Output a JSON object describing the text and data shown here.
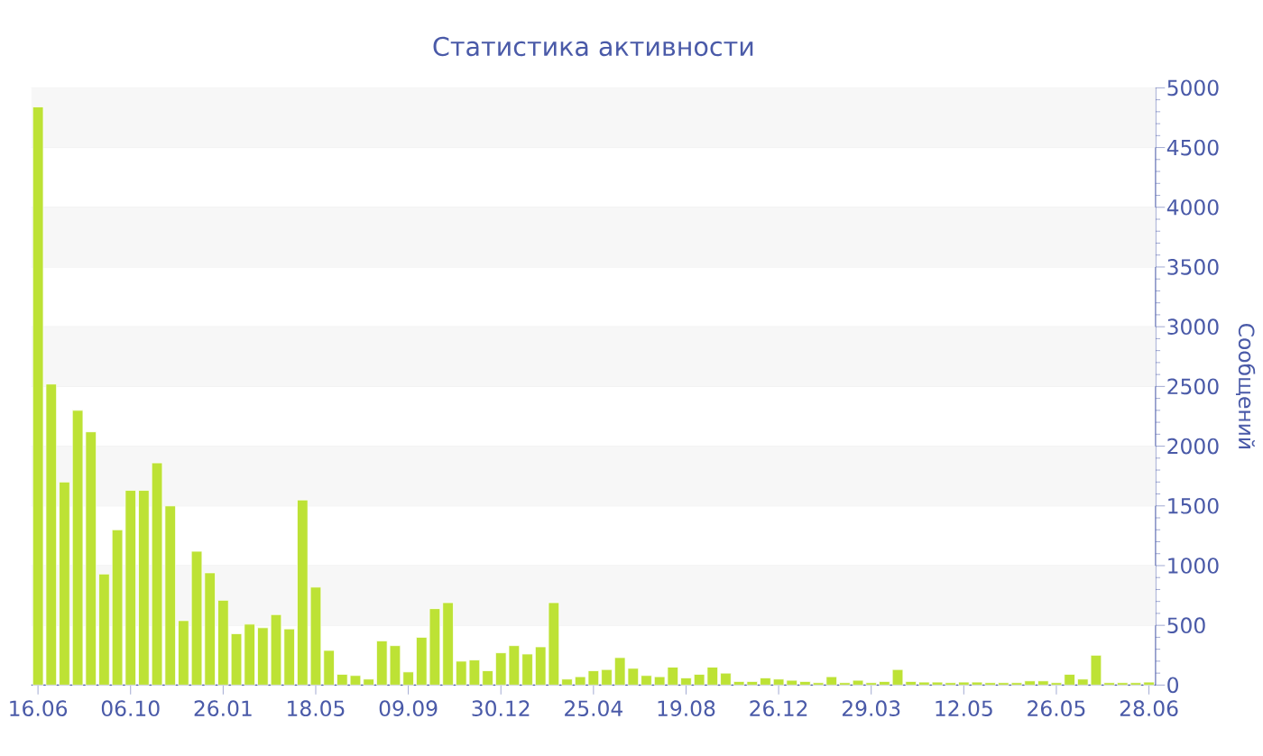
{
  "chart_data": {
    "type": "bar",
    "title": "Статистика активности",
    "ylabel": "Сообщений",
    "categories": [
      "16.06",
      null,
      null,
      null,
      null,
      null,
      null,
      "06.10",
      null,
      null,
      null,
      null,
      null,
      null,
      "26.01",
      null,
      null,
      null,
      null,
      null,
      null,
      "18.05",
      null,
      null,
      null,
      null,
      null,
      null,
      "09.09",
      null,
      null,
      null,
      null,
      null,
      null,
      "30.12",
      null,
      null,
      null,
      null,
      null,
      null,
      "25.04",
      null,
      null,
      null,
      null,
      null,
      null,
      "19.08",
      null,
      null,
      null,
      null,
      null,
      null,
      "26.12",
      null,
      null,
      null,
      null,
      null,
      null,
      "29.03",
      null,
      null,
      null,
      null,
      null,
      null,
      "12.05",
      null,
      null,
      null,
      null,
      null,
      null,
      "26.05",
      null,
      null,
      null,
      null,
      null,
      null,
      "28.06"
    ],
    "values": [
      4840,
      2520,
      1700,
      2300,
      2120,
      930,
      1300,
      1630,
      1630,
      1860,
      1500,
      540,
      1120,
      940,
      710,
      430,
      510,
      480,
      590,
      470,
      1550,
      820,
      290,
      90,
      80,
      50,
      370,
      330,
      110,
      400,
      640,
      690,
      200,
      210,
      120,
      270,
      330,
      260,
      320,
      690,
      50,
      70,
      120,
      130,
      230,
      140,
      80,
      70,
      150,
      60,
      90,
      150,
      100,
      30,
      30,
      60,
      50,
      40,
      30,
      20,
      70,
      20,
      40,
      20,
      30,
      130,
      30,
      25,
      25,
      20,
      25,
      25,
      20,
      20,
      20,
      35,
      35,
      20,
      90,
      50,
      250,
      20,
      20,
      20,
      25
    ],
    "color": "#bde235",
    "ylim": [
      0,
      5000
    ],
    "yticks": [
      0,
      500,
      1000,
      1500,
      2000,
      2500,
      3000,
      3500,
      4000,
      4500,
      5000
    ],
    "grid": "y"
  }
}
